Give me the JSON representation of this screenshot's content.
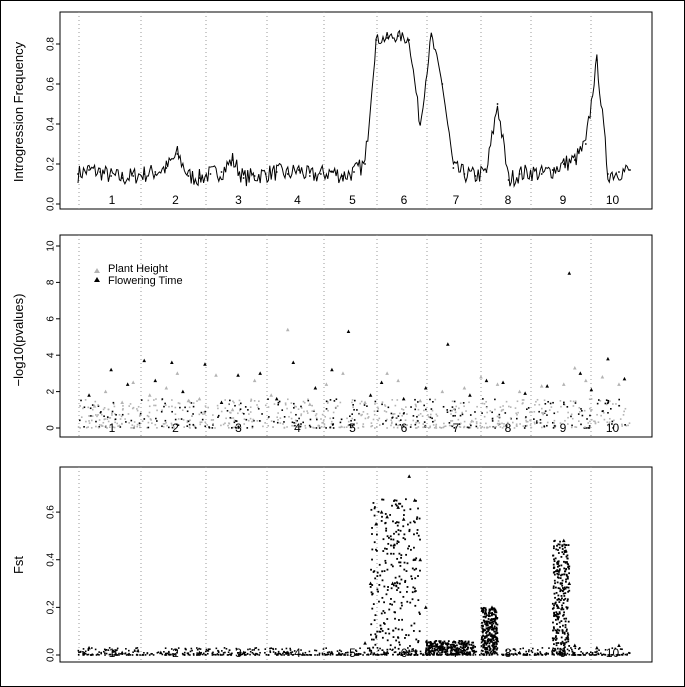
{
  "colors": {
    "background": "#ffffff",
    "frame": "#000000",
    "chromosome_divider": "#9a9a9a",
    "plant_height": "#b3b3b3",
    "flowering_time": "#000000",
    "trace": "#000000"
  },
  "chart_data": [
    {
      "type": "line",
      "ylabel": "Introgression Frequency",
      "xlabel": "",
      "x_tick_labels": [
        "1",
        "2",
        "3",
        "4",
        "5",
        "6",
        "7",
        "8",
        "9",
        "10"
      ],
      "ylim": [
        0,
        0.92
      ],
      "y_ticks": [
        0.0,
        0.2,
        0.4,
        0.6,
        0.8
      ],
      "y_tick_labels": [
        "0.0",
        "0.2",
        "0.4",
        "0.6",
        "0.8"
      ],
      "x": [
        0,
        2,
        4,
        6,
        8,
        10,
        12,
        14,
        16,
        18,
        20,
        22,
        24,
        26,
        28,
        30,
        32,
        34,
        36,
        38,
        40,
        42,
        44,
        46,
        48,
        50,
        52,
        54,
        56,
        58,
        60,
        62,
        64,
        66,
        68,
        70,
        72,
        74,
        76,
        78,
        80,
        82,
        84,
        86,
        88,
        90,
        92,
        94,
        96,
        98,
        100
      ],
      "values": [
        0.15,
        0.17,
        0.16,
        0.14,
        0.13,
        0.14,
        0.15,
        0.16,
        0.18,
        0.25,
        0.14,
        0.13,
        0.15,
        0.16,
        0.22,
        0.13,
        0.14,
        0.15,
        0.16,
        0.15,
        0.17,
        0.14,
        0.15,
        0.16,
        0.14,
        0.16,
        0.2,
        0.82,
        0.83,
        0.84,
        0.82,
        0.4,
        0.84,
        0.6,
        0.18,
        0.15,
        0.14,
        0.16,
        0.5,
        0.12,
        0.15,
        0.16,
        0.15,
        0.17,
        0.2,
        0.22,
        0.3,
        0.72,
        0.15,
        0.16,
        0.17
      ],
      "chromosomes": [
        "1",
        "2",
        "3",
        "4",
        "5",
        "6",
        "7",
        "8",
        "9",
        "10"
      ]
    },
    {
      "type": "scatter",
      "ylabel": "−log10(pvalues)",
      "xlabel": "",
      "x_tick_labels": [
        "1",
        "2",
        "3",
        "4",
        "5",
        "6",
        "7",
        "8",
        "9",
        "10"
      ],
      "ylim": [
        0,
        10
      ],
      "y_ticks": [
        0,
        2,
        4,
        6,
        8,
        10
      ],
      "y_tick_labels": [
        "0",
        "2",
        "4",
        "6",
        "8",
        "10"
      ],
      "legend_position": "top-left",
      "series": [
        {
          "name": "Plant Height",
          "x": [
            3,
            5,
            8,
            10,
            13,
            16,
            18,
            20,
            22,
            25,
            28,
            32,
            35,
            38,
            42,
            45,
            48,
            52,
            56,
            58,
            62,
            66,
            70,
            73,
            76,
            80,
            84,
            88,
            90,
            92,
            95,
            98
          ],
          "values": [
            1.2,
            2.0,
            1.4,
            2.5,
            1.8,
            2.2,
            3.0,
            1.5,
            1.6,
            2.9,
            1.0,
            2.6,
            1.8,
            5.4,
            1.3,
            2.4,
            3.0,
            1.4,
            3.0,
            2.6,
            1.5,
            2.0,
            2.2,
            2.8,
            2.4,
            2.0,
            2.3,
            2.4,
            3.3,
            2.6,
            2.8,
            2.4
          ]
        },
        {
          "name": "Flowering Time",
          "x": [
            2,
            6,
            9,
            12,
            14,
            17,
            19,
            23,
            26,
            29,
            33,
            36,
            39,
            43,
            46,
            49,
            53,
            55,
            59,
            63,
            67,
            71,
            74,
            77,
            81,
            85,
            89,
            91,
            93,
            96,
            99
          ],
          "values": [
            1.8,
            3.2,
            2.4,
            3.7,
            2.6,
            3.6,
            2.0,
            3.5,
            1.4,
            2.9,
            3.0,
            1.6,
            3.6,
            2.2,
            3.2,
            5.3,
            1.8,
            2.5,
            1.6,
            2.2,
            4.6,
            1.8,
            2.6,
            2.5,
            1.9,
            2.3,
            8.5,
            3.0,
            2.1,
            3.8,
            2.7
          ]
        }
      ]
    },
    {
      "type": "scatter",
      "ylabel": "Fst",
      "xlabel": "",
      "x_tick_labels": [
        "1",
        "2",
        "3",
        "4",
        "5",
        "6",
        "7",
        "8",
        "9",
        "10"
      ],
      "ylim": [
        0,
        0.76
      ],
      "y_ticks": [
        0.0,
        0.2,
        0.4,
        0.6
      ],
      "y_tick_labels": [
        "0.0",
        "0.2",
        "0.4",
        "0.6"
      ],
      "x": [
        2,
        8,
        15,
        22,
        30,
        38,
        46,
        52,
        53,
        54,
        55,
        56,
        57,
        58,
        59,
        60,
        61,
        62,
        63,
        64,
        65,
        66,
        70,
        74,
        75,
        76,
        80,
        86,
        87,
        88,
        89,
        90,
        94,
        98
      ],
      "values": [
        0.03,
        0.01,
        0.01,
        0.01,
        0.01,
        0.01,
        0.01,
        0.05,
        0.3,
        0.55,
        0.6,
        0.58,
        0.3,
        0.62,
        0.57,
        0.75,
        0.65,
        0.4,
        0.2,
        0.05,
        0.04,
        0.05,
        0.05,
        0.08,
        0.2,
        0.06,
        0.01,
        0.02,
        0.2,
        0.48,
        0.3,
        0.04,
        0.03,
        0.04
      ]
    }
  ]
}
